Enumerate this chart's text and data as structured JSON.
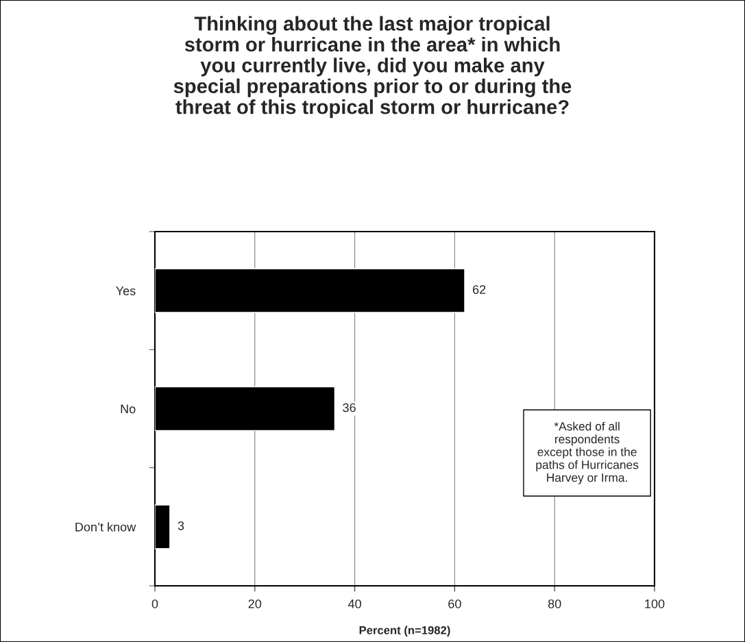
{
  "chart_data": {
    "type": "bar",
    "orientation": "horizontal",
    "title": "Thinking about the last major tropical\nstorm or hurricane in the area* in which\nyou currently live, did you make any\nspecial preparations prior to or during the\nthreat of this tropical storm or hurricane?",
    "categories": [
      "Yes",
      "No",
      "Don’t know"
    ],
    "values": [
      62,
      36,
      3
    ],
    "color": "#000000",
    "xlim": [
      0,
      100
    ],
    "xticks": [
      0,
      20,
      40,
      60,
      80,
      100
    ],
    "xlabel": "Percent (n=1982)",
    "grid": "x",
    "data_labels": true,
    "legend": false,
    "annotations": [
      "*Asked of all\nrespondents\nexcept those in the\npaths of Hurricanes\nHarvey or Irma."
    ]
  }
}
